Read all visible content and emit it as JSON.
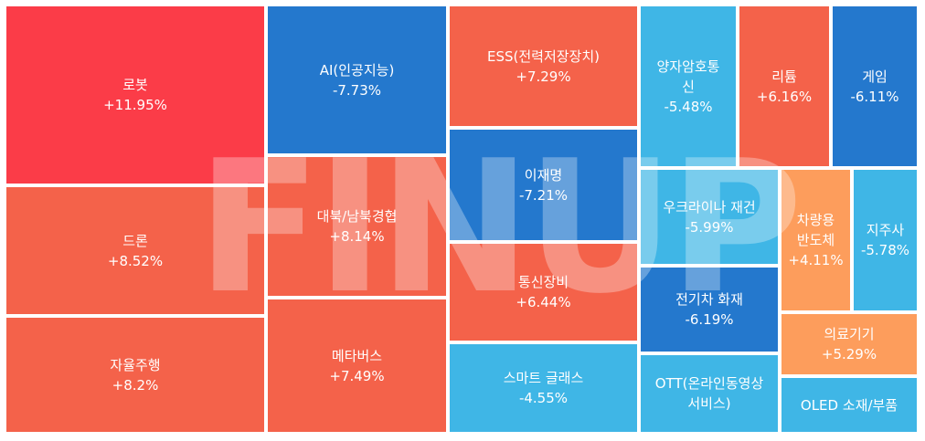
{
  "chart_data": {
    "type": "treemap",
    "colors": {
      "strong_up": "#fb3c48",
      "up": "#f4624a",
      "mild_up": "#fd9d5c",
      "down": "#2478cd",
      "mild_down": "#3fb6e6"
    },
    "items": [
      {
        "name": "로봇",
        "change": "+11.95%",
        "value": 11.95,
        "color": "#fb3c48"
      },
      {
        "name": "드론",
        "change": "+8.52%",
        "value": 8.52,
        "color": "#f4624a"
      },
      {
        "name": "자율주행",
        "change": "+8.2%",
        "value": 8.2,
        "color": "#f4624a"
      },
      {
        "name": "AI(인공지능)",
        "change": "-7.73%",
        "value": -7.73,
        "color": "#2478cd"
      },
      {
        "name": "대북/남북경협",
        "change": "+8.14%",
        "value": 8.14,
        "color": "#f4624a"
      },
      {
        "name": "메타버스",
        "change": "+7.49%",
        "value": 7.49,
        "color": "#f4624a"
      },
      {
        "name": "ESS(전력저장장치)",
        "change": "+7.29%",
        "value": 7.29,
        "color": "#f4624a"
      },
      {
        "name": "이재명",
        "change": "-7.21%",
        "value": -7.21,
        "color": "#2478cd"
      },
      {
        "name": "통신장비",
        "change": "+6.44%",
        "value": 6.44,
        "color": "#f4624a"
      },
      {
        "name": "스마트 글래스",
        "change": "-4.55%",
        "value": -4.55,
        "color": "#3fb6e6"
      },
      {
        "name": "양자암호통\n신",
        "change": "-5.48%",
        "value": -5.48,
        "color": "#3fb6e6"
      },
      {
        "name": "리튬",
        "change": "+6.16%",
        "value": 6.16,
        "color": "#f4624a"
      },
      {
        "name": "게임",
        "change": "-6.11%",
        "value": -6.11,
        "color": "#2478cd"
      },
      {
        "name": "우크라이나 재건",
        "change": "-5.99%",
        "value": -5.99,
        "color": "#3fb6e6"
      },
      {
        "name": "차량용\n반도체",
        "change": "+4.11%",
        "value": 4.11,
        "color": "#fd9d5c"
      },
      {
        "name": "지주사",
        "change": "-5.78%",
        "value": -5.78,
        "color": "#3fb6e6"
      },
      {
        "name": "전기차 화재",
        "change": "-6.19%",
        "value": -6.19,
        "color": "#2478cd"
      },
      {
        "name": "의료기기",
        "change": "+5.29%",
        "value": 5.29,
        "color": "#fd9d5c"
      },
      {
        "name": "OTT(온라인동영상\n서비스)",
        "change": "",
        "value": null,
        "color": "#3fb6e6"
      },
      {
        "name": "OLED 소재/부품",
        "change": "",
        "value": null,
        "color": "#3fb6e6"
      }
    ]
  }
}
